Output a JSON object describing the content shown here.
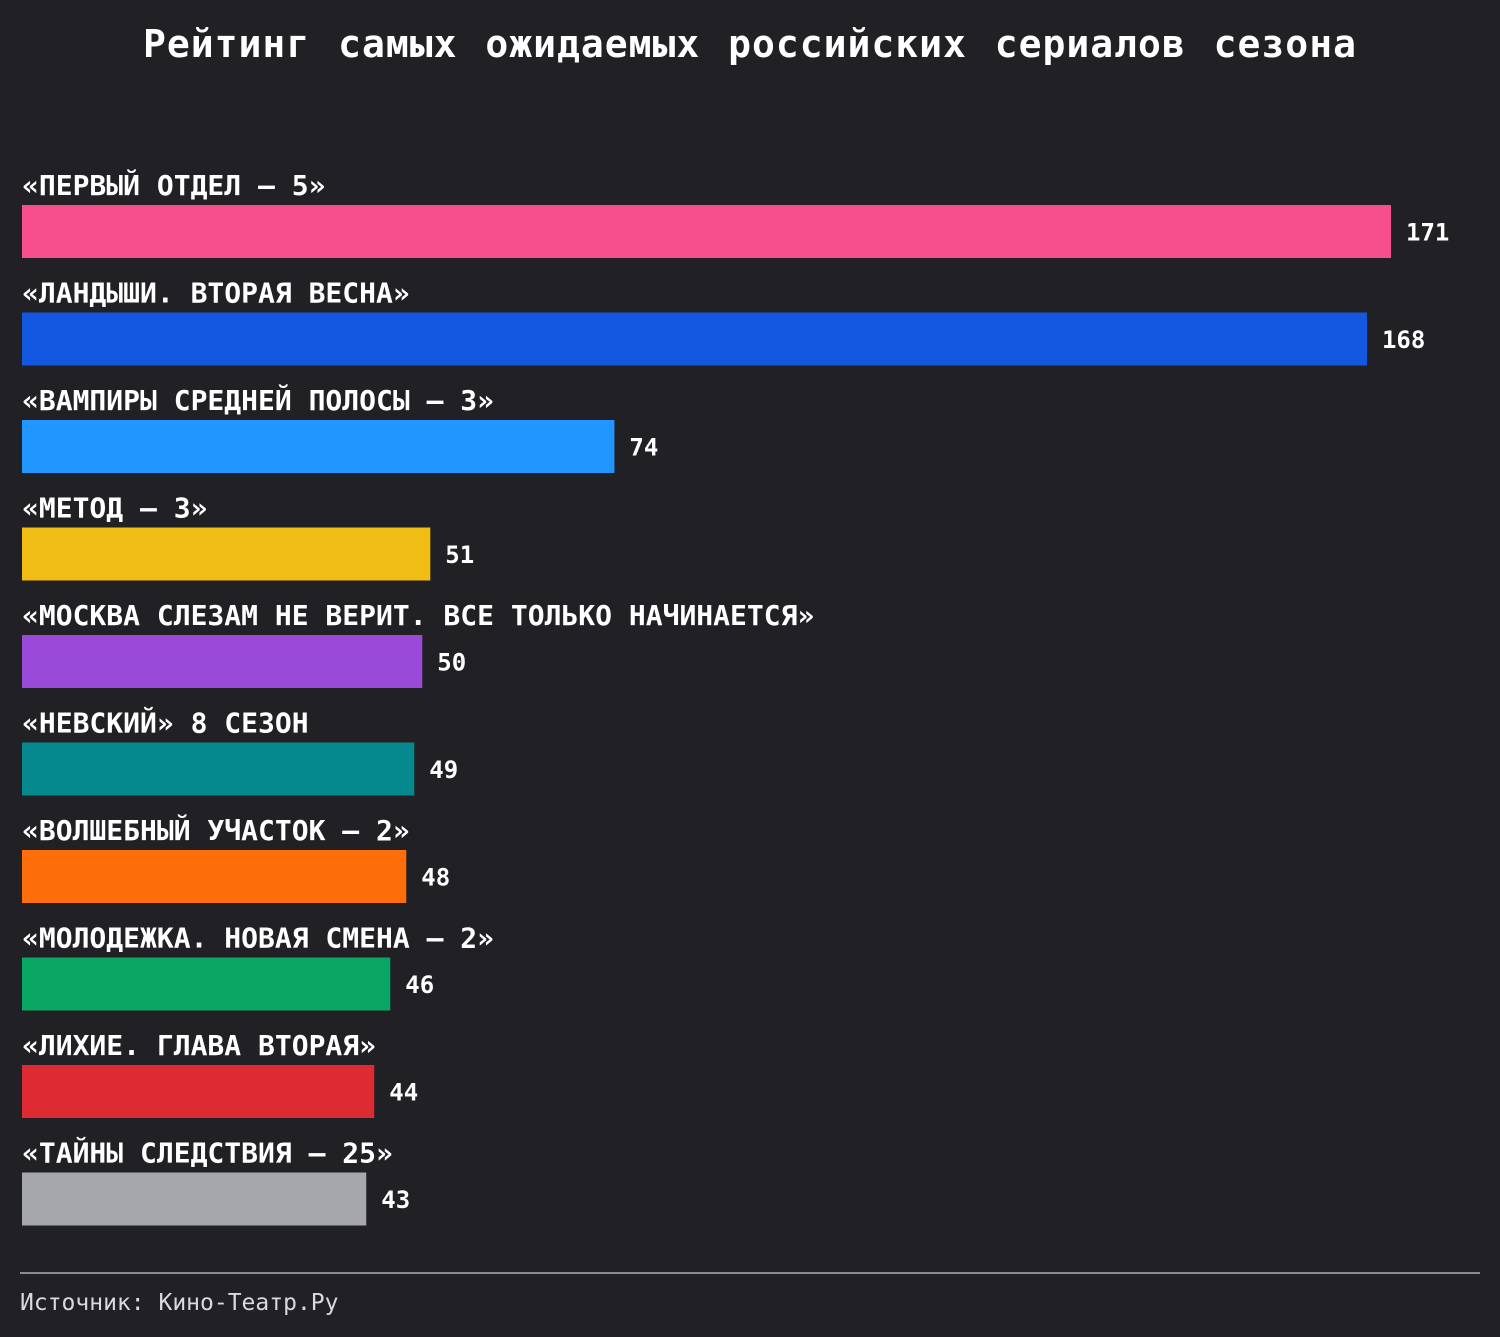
{
  "chart_data": {
    "type": "bar",
    "orientation": "horizontal",
    "title": "Рейтинг самых ожидаемых российских сериалов сезона",
    "source": "Источник: Кино-Театр.Ру",
    "grid": false,
    "categories": [
      "«ПЕРВЫЙ ОТДЕЛ — 5»",
      "«ЛАНДЫШИ. ВТОРАЯ ВЕСНА»",
      "«ВАМПИРЫ СРЕДНЕЙ ПОЛОСЫ — 3»",
      "«МЕТОД — 3»",
      "«МОСКВА СЛЕЗАМ НЕ ВЕРИТ. ВСЕ ТОЛЬКО НАЧИНАЕТСЯ»",
      "«НЕВСКИЙ» 8 СЕЗОН",
      "«ВОЛШЕБНЫЙ УЧАСТОК — 2»",
      "«МОЛОДЕЖКА. НОВАЯ СМЕНА — 2»",
      "«ЛИХИЕ. ГЛАВА ВТОРАЯ»",
      "«ТАЙНЫ СЛЕДСТВИЯ — 25»"
    ],
    "values": [
      171,
      168,
      74,
      51,
      50,
      49,
      48,
      46,
      44,
      43
    ],
    "colors": [
      "#f74f8c",
      "#1457e0",
      "#2196ff",
      "#f0bd14",
      "#9a4ad8",
      "#05898f",
      "#fd6d0a",
      "#0aa663",
      "#dd2a33",
      "#a6a7ab"
    ],
    "xlim": [
      0,
      171
    ]
  }
}
